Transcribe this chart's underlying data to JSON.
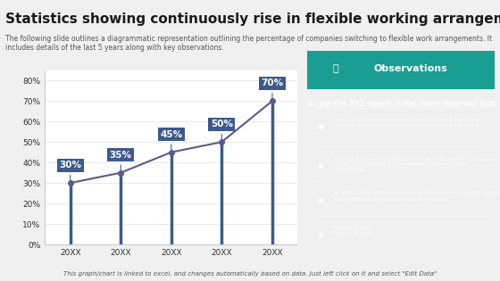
{
  "title": "Statistics showing continuously rise in flexible working arrangement",
  "subtitle": "The following slide outlines a diagrammatic representation outlining the percentage of companies switching to flexible work arrangements. It includes details of the last 5 years along with key observations.",
  "categories": [
    "20XX",
    "20XX",
    "20XX",
    "20XX",
    "20XX"
  ],
  "values": [
    30,
    35,
    45,
    50,
    70
  ],
  "labels": [
    "30%",
    "35%",
    "45%",
    "50%",
    "70%"
  ],
  "ylim": [
    0,
    80
  ],
  "yticks": [
    0,
    10,
    20,
    30,
    40,
    50,
    60,
    70,
    80
  ],
  "ytick_labels": [
    "0%",
    "10%",
    "20%",
    "30%",
    "40%",
    "50%",
    "60%",
    "70%",
    "80%"
  ],
  "line_color": "#5a5a8a",
  "marker_color": "#5a5a8a",
  "bar_color": "#3d5a8a",
  "label_bg_color": "#3d5a8a",
  "label_text_color": "#ffffff",
  "chart_bg_color": "#ffffff",
  "chart_border_color": "#cccccc",
  "left_accent_color": "#3d5a8a",
  "obs_panel_color": "#2bbfb3",
  "obs_title_bg_color": "#1a9e94",
  "obs_title": "Observations",
  "obs_header": "As per the XYZ report, it has been observed that",
  "obs_bullets": [
    "Only 30% of corporations in the USA were providing remote working options to their employees in 2019",
    "During the covid outbreak in 2020, 45% of the companies in the USA offered hybrid model options to their employees",
    "In 2023, 70% of the firms in the USA offering flexible work arrangement options to their employees",
    "Add text here\nAdd text here"
  ],
  "footer": "This graph/chart is linked to excel, and changes automatically based on data. Just left click on it and select \"Edit Data\"",
  "title_fontsize": 11,
  "subtitle_fontsize": 5.5,
  "footer_fontsize": 5
}
